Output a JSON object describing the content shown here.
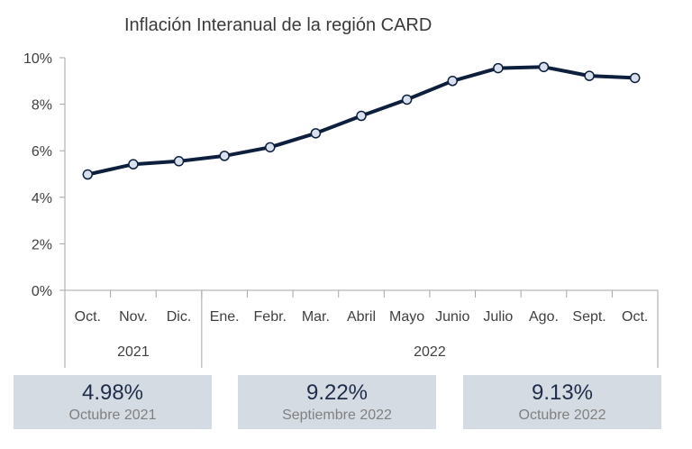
{
  "chart_data": {
    "type": "line",
    "title": "Inflación Interanual de la región CARD",
    "categories": [
      "Oct.",
      "Nov.",
      "Dic.",
      "Ene.",
      "Febr.",
      "Mar.",
      "Abril",
      "Mayo",
      "Junio",
      "Julio",
      "Ago.",
      "Sept.",
      "Oct."
    ],
    "groups": [
      {
        "label": "2021",
        "count": 3
      },
      {
        "label": "2022",
        "count": 10
      }
    ],
    "series": [
      {
        "values": [
          4.98,
          5.42,
          5.55,
          5.78,
          6.15,
          6.75,
          7.5,
          8.2,
          9.0,
          9.55,
          9.6,
          9.22,
          9.13
        ]
      }
    ],
    "ylim": [
      0,
      10
    ],
    "yticks": [
      "0%",
      "2%",
      "4%",
      "6%",
      "8%",
      "10%"
    ],
    "ytick_values": [
      0,
      2,
      4,
      6,
      8,
      10
    ],
    "grid": false,
    "legend": "none",
    "colors": {
      "line": "#0d1f3c",
      "marker_fill": "#d9e1ee",
      "axis": "#a6a6a6"
    }
  },
  "stats": [
    {
      "value": "4.98%",
      "label": "Octubre 2021"
    },
    {
      "value": "9.22%",
      "label": "Septiembre 2022"
    },
    {
      "value": "9.13%",
      "label": "Octubre 2022"
    }
  ]
}
